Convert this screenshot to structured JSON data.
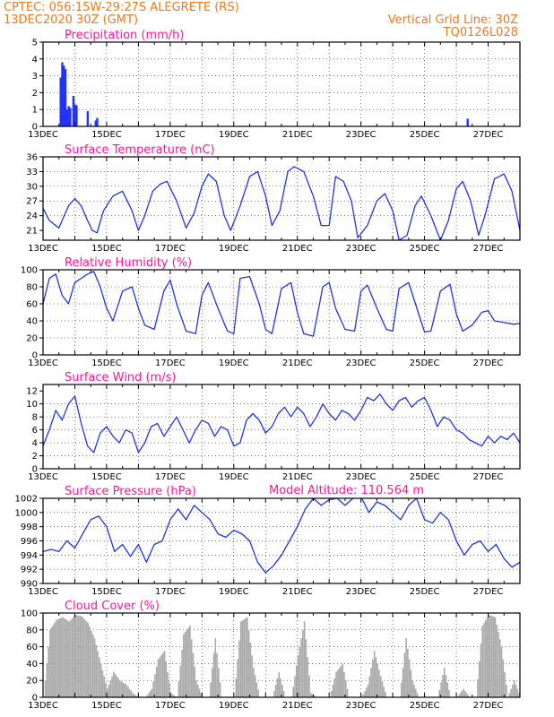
{
  "header": {
    "line1": "CPTEC:   056:15W-29:27S   ALEGRETE (RS)",
    "line2": "13DEC2020 30Z (GMT)",
    "grid_note": "Vertical Grid Line: 30Z",
    "code": "TQ0126L028"
  },
  "model_altitude": "Model Altitude: 110.564 m",
  "x_ticks": [
    "13DEC",
    "15DEC",
    "17DEC",
    "19DEC",
    "21DEC",
    "23DEC",
    "25DEC",
    "27DEC"
  ],
  "colors": {
    "line": "#2233dd",
    "bar": "#2233ff",
    "cloud": "#a9a9a9",
    "title": "#ff1493",
    "header": "#f07818"
  },
  "chart_data": [
    {
      "id": "precip",
      "type": "bar",
      "title": "Precipitation (mm/h)",
      "ylim": [
        0,
        5
      ],
      "yticks": [
        0,
        1,
        2,
        3,
        4,
        5
      ],
      "x_days": [
        0.55,
        0.6,
        0.65,
        0.7,
        0.75,
        0.8,
        0.85,
        0.95,
        1.0,
        1.05,
        1.4,
        1.65,
        1.7,
        13.35
      ],
      "values": [
        2.9,
        3.8,
        3.6,
        3.4,
        1.0,
        1.2,
        1.1,
        1.8,
        1.3,
        1.25,
        0.9,
        0.35,
        0.5,
        0.45
      ]
    },
    {
      "id": "temp",
      "type": "line",
      "title": "Surface Temperature (nC)",
      "ylim": [
        19,
        36
      ],
      "yticks": [
        21,
        24,
        27,
        30,
        33,
        36
      ],
      "x_days": [
        0,
        0.2,
        0.5,
        0.8,
        1.0,
        1.2,
        1.4,
        1.55,
        1.7,
        1.9,
        2.2,
        2.5,
        2.8,
        3.0,
        3.2,
        3.45,
        3.7,
        3.9,
        4.2,
        4.5,
        4.75,
        5.0,
        5.2,
        5.45,
        5.7,
        5.9,
        6.2,
        6.5,
        6.75,
        7.0,
        7.2,
        7.45,
        7.7,
        7.9,
        8.2,
        8.5,
        8.75,
        9.0,
        9.2,
        9.45,
        9.7,
        9.9,
        10.2,
        10.5,
        10.75,
        11.0,
        11.2,
        11.45,
        11.7,
        11.9,
        12.2,
        12.5,
        12.75,
        13.0,
        13.2,
        13.45,
        13.7,
        13.9,
        14.2,
        14.5,
        14.75,
        15.0
      ],
      "values": [
        25.5,
        23,
        21.5,
        26,
        27.5,
        26,
        23,
        21,
        20.5,
        25,
        28,
        29,
        25,
        21,
        24,
        29,
        30.5,
        31,
        27,
        21.5,
        24.5,
        30,
        32.5,
        31,
        24,
        21,
        26,
        32,
        33,
        28,
        22,
        25,
        33,
        34,
        33,
        28,
        22,
        22,
        32,
        31,
        27,
        19.5,
        22,
        27,
        28.5,
        25,
        19,
        20,
        26,
        28,
        24,
        19,
        23,
        29.5,
        31,
        27,
        20,
        24,
        31.5,
        32.5,
        29,
        21
      ]
    },
    {
      "id": "rh",
      "type": "line",
      "title": "Relative Humidity (%)",
      "ylim": [
        0,
        100
      ],
      "yticks": [
        0,
        20,
        40,
        60,
        80,
        100
      ],
      "x_days": [
        0,
        0.2,
        0.4,
        0.6,
        0.8,
        1.0,
        1.2,
        1.4,
        1.6,
        1.8,
        2.0,
        2.2,
        2.5,
        2.8,
        3.0,
        3.2,
        3.5,
        3.8,
        4.0,
        4.2,
        4.5,
        4.8,
        5.0,
        5.2,
        5.5,
        5.8,
        6.0,
        6.2,
        6.5,
        6.8,
        7.0,
        7.2,
        7.5,
        7.8,
        8.0,
        8.2,
        8.5,
        8.8,
        9.0,
        9.2,
        9.5,
        9.8,
        10.0,
        10.2,
        10.5,
        10.8,
        11.0,
        11.2,
        11.5,
        11.8,
        12.0,
        12.2,
        12.5,
        12.8,
        13.0,
        13.2,
        13.5,
        13.8,
        14.0,
        14.2,
        14.5,
        14.8,
        15.0
      ],
      "values": [
        60,
        90,
        95,
        70,
        60,
        85,
        90,
        95,
        98,
        80,
        55,
        40,
        75,
        80,
        55,
        35,
        30,
        75,
        88,
        60,
        28,
        25,
        70,
        85,
        55,
        28,
        25,
        90,
        92,
        60,
        30,
        25,
        78,
        85,
        50,
        25,
        22,
        80,
        85,
        55,
        30,
        28,
        75,
        82,
        55,
        30,
        28,
        78,
        85,
        50,
        27,
        28,
        75,
        83,
        48,
        28,
        35,
        50,
        52,
        40,
        38,
        36,
        37
      ]
    },
    {
      "id": "wind",
      "type": "line",
      "title": "Surface Wind (m/s)",
      "ylim": [
        0,
        13
      ],
      "yticks": [
        0,
        2,
        4,
        6,
        8,
        10,
        12
      ],
      "x_days": [
        0,
        0.2,
        0.4,
        0.6,
        0.8,
        1.0,
        1.2,
        1.4,
        1.6,
        1.8,
        2.0,
        2.2,
        2.4,
        2.6,
        2.8,
        3.0,
        3.2,
        3.4,
        3.6,
        3.8,
        4.0,
        4.2,
        4.4,
        4.6,
        4.8,
        5.0,
        5.2,
        5.4,
        5.6,
        5.8,
        6.0,
        6.2,
        6.4,
        6.6,
        6.8,
        7.0,
        7.2,
        7.4,
        7.6,
        7.8,
        8.0,
        8.2,
        8.4,
        8.6,
        8.8,
        9.0,
        9.2,
        9.4,
        9.6,
        9.8,
        10.0,
        10.2,
        10.4,
        10.6,
        10.8,
        11.0,
        11.2,
        11.4,
        11.6,
        11.8,
        12.0,
        12.2,
        12.4,
        12.6,
        12.8,
        13.0,
        13.2,
        13.4,
        13.6,
        13.8,
        14.0,
        14.2,
        14.4,
        14.6,
        14.8,
        15.0
      ],
      "values": [
        3.5,
        6,
        9,
        7.5,
        10,
        11.2,
        7,
        3.5,
        2.5,
        5.5,
        6.5,
        5,
        4,
        6,
        5.5,
        2.5,
        4,
        6.5,
        7,
        5,
        6.5,
        8,
        6,
        4,
        6,
        7.5,
        7,
        5,
        6.5,
        6,
        3.5,
        4,
        7.5,
        8.5,
        7.5,
        5.5,
        6.5,
        8.5,
        9.5,
        8,
        9.5,
        8.5,
        6.5,
        8,
        10,
        8.5,
        7.5,
        9,
        8.5,
        7.5,
        9,
        11,
        10.5,
        11.5,
        10,
        9,
        10.5,
        11,
        9.5,
        10.5,
        11,
        9,
        6.5,
        8,
        7.5,
        6,
        5.5,
        4.5,
        4,
        3.5,
        5,
        4,
        5,
        4.5,
        5.5,
        4
      ]
    },
    {
      "id": "pressure",
      "type": "line",
      "title": "Surface Pressure (hPa)",
      "ylim": [
        990,
        1002
      ],
      "yticks": [
        990,
        992,
        994,
        996,
        998,
        1000,
        1002
      ],
      "x_days": [
        0,
        0.25,
        0.5,
        0.75,
        1.0,
        1.25,
        1.5,
        1.75,
        2.0,
        2.25,
        2.5,
        2.75,
        3.0,
        3.25,
        3.5,
        3.75,
        4.0,
        4.25,
        4.5,
        4.75,
        5.0,
        5.25,
        5.5,
        5.75,
        6.0,
        6.25,
        6.5,
        6.75,
        7.0,
        7.25,
        7.5,
        7.75,
        8.0,
        8.25,
        8.5,
        8.75,
        9.0,
        9.25,
        9.5,
        9.75,
        10.0,
        10.25,
        10.5,
        10.75,
        11.0,
        11.25,
        11.5,
        11.75,
        12.0,
        12.25,
        12.5,
        12.75,
        13.0,
        13.25,
        13.5,
        13.75,
        14.0,
        14.25,
        14.5,
        14.75,
        15.0
      ],
      "values": [
        994.5,
        994.8,
        994.5,
        996,
        995,
        997,
        999,
        999.5,
        998,
        994.5,
        995.5,
        993.8,
        995.5,
        993,
        995.5,
        996,
        999,
        1000.5,
        999,
        1001,
        1000,
        999,
        997,
        996.5,
        997.5,
        997,
        996,
        993,
        991.5,
        992.5,
        994,
        996,
        998,
        1000.5,
        1002,
        1001,
        1001.8,
        1002,
        1001,
        1002,
        1002.2,
        1000,
        1001.5,
        1001,
        1000,
        999,
        1001,
        1002,
        999,
        998.5,
        1000,
        999,
        996,
        994,
        995.5,
        996,
        994.5,
        995.5,
        993.5,
        992.3,
        993
      ]
    },
    {
      "id": "cloud",
      "type": "area",
      "title": "Cloud Cover (%)",
      "ylim": [
        0,
        100
      ],
      "yticks": [
        0,
        20,
        40,
        60,
        80,
        100
      ],
      "x_days": [
        0,
        0.2,
        0.4,
        0.6,
        0.8,
        1.0,
        1.2,
        1.4,
        1.6,
        1.8,
        1.9,
        2.0,
        2.2,
        2.4,
        2.6,
        2.8,
        3.0,
        3.2,
        3.4,
        3.6,
        3.8,
        4.0,
        4.2,
        4.4,
        4.6,
        4.8,
        5.0,
        5.2,
        5.4,
        5.6,
        5.8,
        6.0,
        6.2,
        6.4,
        6.6,
        6.8,
        7.0,
        7.2,
        7.4,
        7.6,
        7.8,
        8.0,
        8.2,
        8.4,
        8.6,
        8.8,
        9.0,
        9.2,
        9.4,
        9.6,
        9.8,
        10.0,
        10.2,
        10.4,
        10.6,
        10.8,
        11.0,
        11.2,
        11.4,
        11.6,
        11.8,
        12.0,
        12.2,
        12.4,
        12.6,
        12.8,
        13.0,
        13.2,
        13.4,
        13.6,
        13.8,
        14.0,
        14.2,
        14.4,
        14.6,
        14.8,
        15.0
      ],
      "values": [
        0,
        80,
        92,
        95,
        90,
        98,
        96,
        88,
        70,
        40,
        25,
        10,
        30,
        20,
        15,
        5,
        0,
        0,
        10,
        45,
        55,
        5,
        0,
        75,
        85,
        20,
        0,
        0,
        70,
        0,
        0,
        0,
        90,
        95,
        35,
        0,
        0,
        0,
        30,
        0,
        0,
        50,
        90,
        5,
        0,
        0,
        0,
        30,
        40,
        0,
        0,
        0,
        15,
        55,
        25,
        0,
        0,
        0,
        70,
        20,
        0,
        0,
        0,
        0,
        35,
        0,
        0,
        10,
        0,
        0,
        85,
        98,
        95,
        60,
        0,
        20,
        0
      ]
    }
  ]
}
